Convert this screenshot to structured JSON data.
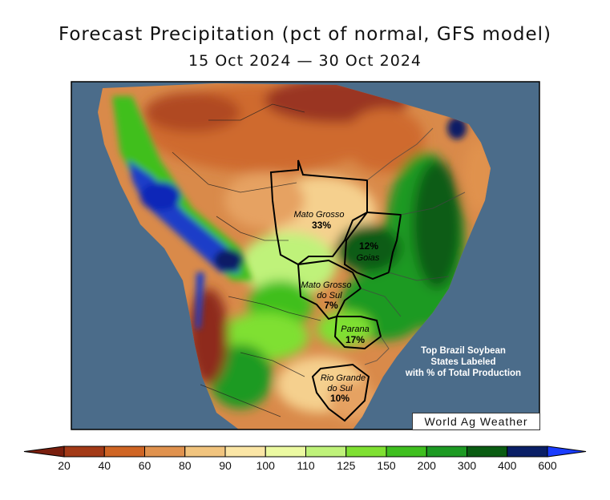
{
  "title": "Forecast Precipitation (pct of normal, GFS model)",
  "subtitle": "15 Oct 2024 — 30 Oct 2024",
  "credit": "World Ag Weather",
  "note_lines": [
    "Top Brazil Soybean",
    "States Labeled",
    "with % of Total Production"
  ],
  "states": [
    {
      "name_lines": [
        "Mato Grosso"
      ],
      "pct": "33%"
    },
    {
      "name_lines": [
        "Goias"
      ],
      "pct": "12%"
    },
    {
      "name_lines": [
        "Mato Grosso",
        "do Sul"
      ],
      "pct": "7%"
    },
    {
      "name_lines": [
        "Parana"
      ],
      "pct": "17%"
    },
    {
      "name_lines": [
        "Rio Grande",
        "do Sul"
      ],
      "pct": "10%"
    }
  ],
  "legend": {
    "ticks": [
      "20",
      "40",
      "60",
      "80",
      "90",
      "100",
      "110",
      "125",
      "150",
      "200",
      "300",
      "400",
      "600"
    ],
    "under_color": "#7a1f0e",
    "over_color": "#1a3cff",
    "colors": [
      "#a33a17",
      "#cf6524",
      "#e0924e",
      "#f1c47e",
      "#fbe6a6",
      "#ecfaa2",
      "#bff27a",
      "#7fe032",
      "#3fbf1f",
      "#1d9a23",
      "#0a5c12",
      "#0a1f66",
      "#1028b8"
    ]
  },
  "colors": {
    "ocean": "#4b6c8a",
    "andes_wet": "#1a3cc8",
    "dry_north": "#cf6a2e",
    "deep_dry": "#8e2c1a"
  }
}
